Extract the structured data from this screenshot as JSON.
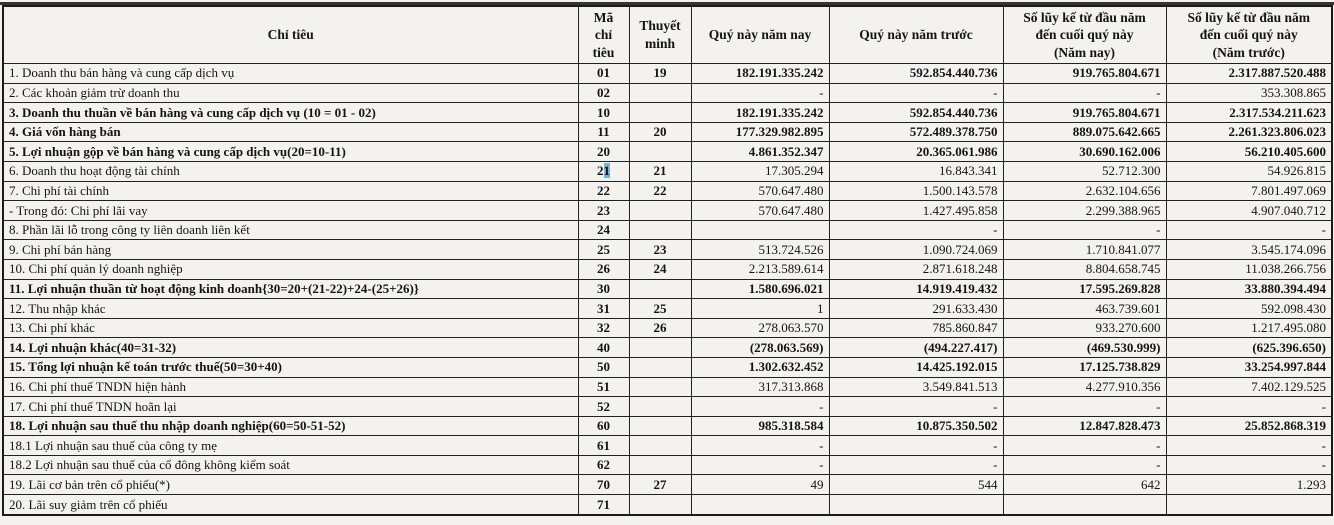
{
  "table": {
    "headers": [
      "Chỉ tiêu",
      "Mã\nchỉ tiêu",
      "Thuyết\nminh",
      "Quý này năm nay",
      "Quý này năm trước",
      "Số lũy kế từ đầu năm\nđến cuối quý này\n(Năm nay)",
      "Số lũy kế từ đầu năm\nđến cuối quý này\n(Năm trước)"
    ],
    "rows": [
      {
        "label": "1. Doanh thu bán hàng và cung cấp dịch vụ",
        "code": "01",
        "note": "19",
        "q_now": "182.191.335.242",
        "q_prev": "592.854.440.736",
        "ytd_now": "919.765.804.671",
        "ytd_prev": "2.317.887.520.488",
        "bold": false,
        "num_bold": true
      },
      {
        "label": "2. Các khoản giảm trừ doanh thu",
        "code": "02",
        "note": "",
        "q_now": "-",
        "q_prev": "-",
        "ytd_now": "-",
        "ytd_prev": "353.308.865",
        "bold": false,
        "num_bold": false
      },
      {
        "label": "3. Doanh thu thuần về bán hàng và cung cấp dịch vụ (10 = 01 - 02)",
        "code": "10",
        "note": "",
        "q_now": "182.191.335.242",
        "q_prev": "592.854.440.736",
        "ytd_now": "919.765.804.671",
        "ytd_prev": "2.317.534.211.623",
        "bold": true,
        "num_bold": true
      },
      {
        "label": "4. Giá vốn hàng bán",
        "code": "11",
        "note": "20",
        "q_now": "177.329.982.895",
        "q_prev": "572.489.378.750",
        "ytd_now": "889.075.642.665",
        "ytd_prev": "2.261.323.806.023",
        "bold": true,
        "num_bold": true
      },
      {
        "label": "5. Lợi nhuận gộp về bán hàng và cung cấp dịch vụ(20=10-11)",
        "code": "20",
        "note": "",
        "q_now": "4.861.352.347",
        "q_prev": "20.365.061.986",
        "ytd_now": "30.690.162.006",
        "ytd_prev": "56.210.405.600",
        "bold": true,
        "num_bold": true
      },
      {
        "label": "6. Doanh thu hoạt động tài chính",
        "code": "21",
        "note": "21",
        "q_now": "17.305.294",
        "q_prev": "16.843.341",
        "ytd_now": "52.712.300",
        "ytd_prev": "54.926.815",
        "bold": false,
        "num_bold": false,
        "code_cursor": true
      },
      {
        "label": "7. Chi phí tài chính",
        "code": "22",
        "note": "22",
        "q_now": "570.647.480",
        "q_prev": "1.500.143.578",
        "ytd_now": "2.632.104.656",
        "ytd_prev": "7.801.497.069",
        "bold": false,
        "num_bold": false
      },
      {
        "label": " - Trong đó: Chi phí lãi vay",
        "code": "23",
        "note": "",
        "q_now": "570.647.480",
        "q_prev": "1.427.495.858",
        "ytd_now": "2.299.388.965",
        "ytd_prev": "4.907.040.712",
        "bold": false,
        "num_bold": false
      },
      {
        "label": "8. Phần lãi lỗ trong công ty liên doanh liên kết",
        "code": "24",
        "note": "",
        "q_now": "",
        "q_prev": "-",
        "ytd_now": "-",
        "ytd_prev": "-",
        "bold": false,
        "num_bold": false
      },
      {
        "label": "9. Chi phí bán hàng",
        "code": "25",
        "note": "23",
        "q_now": "513.724.526",
        "q_prev": "1.090.724.069",
        "ytd_now": "1.710.841.077",
        "ytd_prev": "3.545.174.096",
        "bold": false,
        "num_bold": false
      },
      {
        "label": "10. Chi phí quản lý doanh nghiệp",
        "code": "26",
        "note": "24",
        "q_now": "2.213.589.614",
        "q_prev": "2.871.618.248",
        "ytd_now": "8.804.658.745",
        "ytd_prev": "11.038.266.756",
        "bold": false,
        "num_bold": false
      },
      {
        "label": "11. Lợi nhuận thuần từ hoạt động kinh doanh{30=20+(21-22)+24-(25+26)}",
        "code": "30",
        "note": "",
        "q_now": "1.580.696.021",
        "q_prev": "14.919.419.432",
        "ytd_now": "17.595.269.828",
        "ytd_prev": "33.880.394.494",
        "bold": true,
        "num_bold": true
      },
      {
        "label": "12. Thu nhập khác",
        "code": "31",
        "note": "25",
        "q_now": "1",
        "q_prev": "291.633.430",
        "ytd_now": "463.739.601",
        "ytd_prev": "592.098.430",
        "bold": false,
        "num_bold": false
      },
      {
        "label": "13. Chi phí khác",
        "code": "32",
        "note": "26",
        "q_now": "278.063.570",
        "q_prev": "785.860.847",
        "ytd_now": "933.270.600",
        "ytd_prev": "1.217.495.080",
        "bold": false,
        "num_bold": false
      },
      {
        "label": "14. Lợi nhuận khác(40=31-32)",
        "code": "40",
        "note": "",
        "q_now": "(278.063.569)",
        "q_prev": "(494.227.417)",
        "ytd_now": "(469.530.999)",
        "ytd_prev": "(625.396.650)",
        "bold": true,
        "num_bold": true
      },
      {
        "label": "15. Tổng lợi nhuận kế toán trước thuế(50=30+40)",
        "code": "50",
        "note": "",
        "q_now": "1.302.632.452",
        "q_prev": "14.425.192.015",
        "ytd_now": "17.125.738.829",
        "ytd_prev": "33.254.997.844",
        "bold": true,
        "num_bold": true
      },
      {
        "label": "16. Chi phí thuế TNDN hiện hành",
        "code": "51",
        "note": "",
        "q_now": "317.313.868",
        "q_prev": "3.549.841.513",
        "ytd_now": "4.277.910.356",
        "ytd_prev": "7.402.129.525",
        "bold": false,
        "num_bold": false
      },
      {
        "label": "17. Chi phí thuế TNDN hoãn lại",
        "code": "52",
        "note": "",
        "q_now": "-",
        "q_prev": "-",
        "ytd_now": "-",
        "ytd_prev": "-",
        "bold": false,
        "num_bold": false
      },
      {
        "label": "18. Lợi nhuận sau thuế thu nhập doanh nghiệp(60=50-51-52)",
        "code": "60",
        "note": "",
        "q_now": "985.318.584",
        "q_prev": "10.875.350.502",
        "ytd_now": "12.847.828.473",
        "ytd_prev": "25.852.868.319",
        "bold": true,
        "num_bold": true
      },
      {
        "label": "18.1 Lợi nhuận sau thuế của công ty mẹ",
        "code": "61",
        "note": "",
        "q_now": "-",
        "q_prev": "-",
        "ytd_now": "-",
        "ytd_prev": "-",
        "bold": false,
        "num_bold": false
      },
      {
        "label": "18.2 Lợi nhuận sau thuế của cổ đông không kiểm soát",
        "code": "62",
        "note": "",
        "q_now": "-",
        "q_prev": "-",
        "ytd_now": "-",
        "ytd_prev": "-",
        "bold": false,
        "num_bold": false
      },
      {
        "label": "19. Lãi cơ bản trên cổ phiếu(*)",
        "code": "70",
        "note": "27",
        "q_now": "49",
        "q_prev": "544",
        "ytd_now": "642",
        "ytd_prev": "1.293",
        "bold": false,
        "num_bold": false
      },
      {
        "label": "20. Lãi suy giảm trên cổ phiếu",
        "code": "71",
        "note": "",
        "q_now": "",
        "q_prev": "",
        "ytd_now": "",
        "ytd_prev": "",
        "bold": false,
        "num_bold": false
      }
    ]
  },
  "colors": {
    "cursor_highlight": "#79b2da",
    "border": "#22211d",
    "page_background": "#f3f2ef",
    "text": "#141414"
  }
}
